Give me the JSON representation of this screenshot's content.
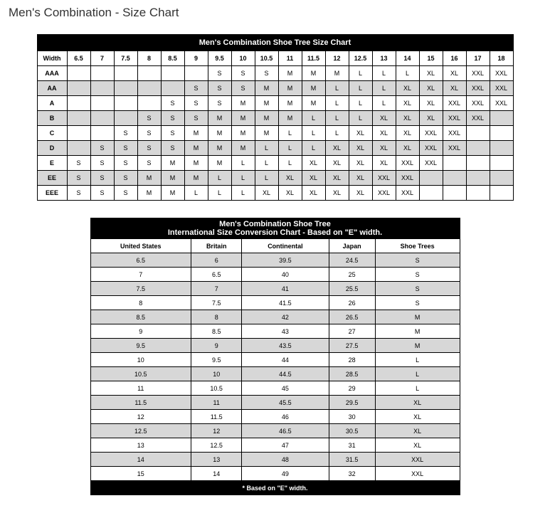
{
  "page": {
    "title": "Men's Combination - Size Chart"
  },
  "sizeChart": {
    "title": "Men's Combination Shoe Tree Size Chart",
    "cornerLabel": "Width",
    "columns": [
      "6.5",
      "7",
      "7.5",
      "8",
      "8.5",
      "9",
      "9.5",
      "10",
      "10.5",
      "11",
      "11.5",
      "12",
      "12.5",
      "13",
      "14",
      "15",
      "16",
      "17",
      "18"
    ],
    "rows": [
      {
        "label": "AAA",
        "cells": [
          "",
          "",
          "",
          "",
          "",
          "",
          "S",
          "S",
          "S",
          "M",
          "M",
          "M",
          "L",
          "L",
          "L",
          "XL",
          "XL",
          "XXL",
          "XXL"
        ]
      },
      {
        "label": "AA",
        "cells": [
          "",
          "",
          "",
          "",
          "",
          "S",
          "S",
          "S",
          "M",
          "M",
          "M",
          "L",
          "L",
          "L",
          "XL",
          "XL",
          "XL",
          "XXL",
          "XXL"
        ]
      },
      {
        "label": "A",
        "cells": [
          "",
          "",
          "",
          "",
          "S",
          "S",
          "S",
          "M",
          "M",
          "M",
          "M",
          "L",
          "L",
          "L",
          "XL",
          "XL",
          "XXL",
          "XXL",
          "XXL"
        ]
      },
      {
        "label": "B",
        "cells": [
          "",
          "",
          "",
          "S",
          "S",
          "S",
          "M",
          "M",
          "M",
          "M",
          "L",
          "L",
          "L",
          "XL",
          "XL",
          "XL",
          "XXL",
          "XXL",
          ""
        ]
      },
      {
        "label": "C",
        "cells": [
          "",
          "",
          "S",
          "S",
          "S",
          "M",
          "M",
          "M",
          "M",
          "L",
          "L",
          "L",
          "XL",
          "XL",
          "XL",
          "XXL",
          "XXL",
          "",
          ""
        ]
      },
      {
        "label": "D",
        "cells": [
          "",
          "S",
          "S",
          "S",
          "S",
          "M",
          "M",
          "M",
          "L",
          "L",
          "L",
          "XL",
          "XL",
          "XL",
          "XL",
          "XXL",
          "XXL",
          "",
          ""
        ]
      },
      {
        "label": "E",
        "cells": [
          "S",
          "S",
          "S",
          "S",
          "M",
          "M",
          "M",
          "L",
          "L",
          "L",
          "XL",
          "XL",
          "XL",
          "XL",
          "XXL",
          "XXL",
          "",
          "",
          ""
        ]
      },
      {
        "label": "EE",
        "cells": [
          "S",
          "S",
          "S",
          "M",
          "M",
          "M",
          "L",
          "L",
          "L",
          "XL",
          "XL",
          "XL",
          "XL",
          "XXL",
          "XXL",
          "",
          "",
          "",
          ""
        ]
      },
      {
        "label": "EEE",
        "cells": [
          "S",
          "S",
          "S",
          "M",
          "M",
          "L",
          "L",
          "L",
          "XL",
          "XL",
          "XL",
          "XL",
          "XL",
          "XXL",
          "XXL",
          "",
          "",
          "",
          ""
        ]
      }
    ],
    "shadedRowIndices": [
      1,
      3,
      5,
      7
    ]
  },
  "convChart": {
    "titleLine1": "Men's Combination Shoe Tree",
    "titleLine2": "International Size Conversion Chart - Based on \"E\" width.",
    "columns": [
      "United States",
      "Britain",
      "Continental",
      "Japan",
      "Shoe Trees"
    ],
    "rows": [
      [
        "6.5",
        "6",
        "39.5",
        "24.5",
        "S"
      ],
      [
        "7",
        "6.5",
        "40",
        "25",
        "S"
      ],
      [
        "7.5",
        "7",
        "41",
        "25.5",
        "S"
      ],
      [
        "8",
        "7.5",
        "41.5",
        "26",
        "S"
      ],
      [
        "8.5",
        "8",
        "42",
        "26.5",
        "M"
      ],
      [
        "9",
        "8.5",
        "43",
        "27",
        "M"
      ],
      [
        "9.5",
        "9",
        "43.5",
        "27.5",
        "M"
      ],
      [
        "10",
        "9.5",
        "44",
        "28",
        "L"
      ],
      [
        "10.5",
        "10",
        "44.5",
        "28.5",
        "L"
      ],
      [
        "11",
        "10.5",
        "45",
        "29",
        "L"
      ],
      [
        "11.5",
        "11",
        "45.5",
        "29.5",
        "XL"
      ],
      [
        "12",
        "11.5",
        "46",
        "30",
        "XL"
      ],
      [
        "12.5",
        "12",
        "46.5",
        "30.5",
        "XL"
      ],
      [
        "13",
        "12.5",
        "47",
        "31",
        "XL"
      ],
      [
        "14",
        "13",
        "48",
        "31.5",
        "XXL"
      ],
      [
        "15",
        "14",
        "49",
        "32",
        "XXL"
      ]
    ],
    "footnote": "* Based on \"E\" width.",
    "shadedRowIndices": [
      0,
      2,
      4,
      6,
      8,
      10,
      12,
      14
    ]
  }
}
